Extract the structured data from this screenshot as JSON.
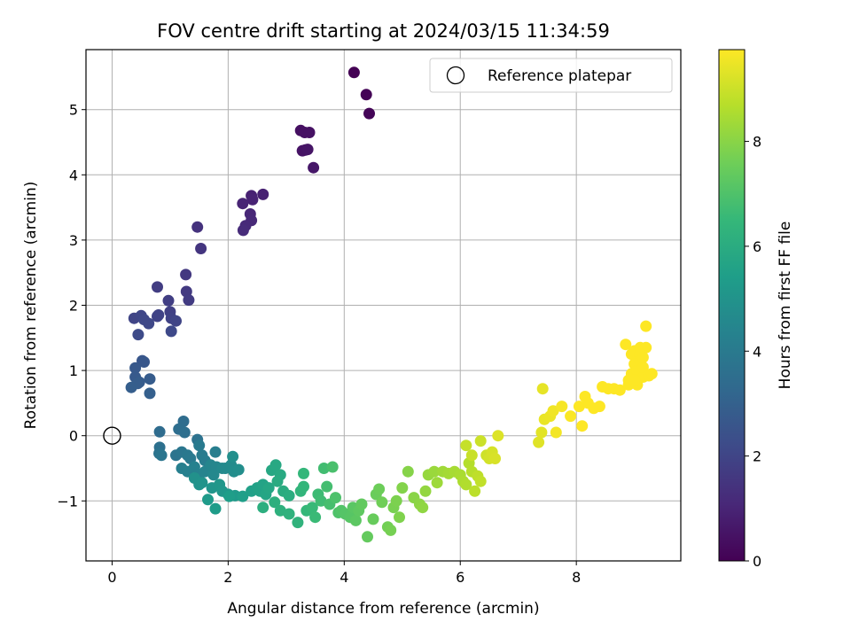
{
  "chart_data": {
    "type": "scatter",
    "title": "FOV centre drift starting at 2024/03/15 11:34:59",
    "xlabel": "Angular distance from reference (arcmin)",
    "ylabel": "Rotation from reference (arcmin)",
    "xlim": [
      -0.45,
      9.8
    ],
    "ylim": [
      -1.92,
      5.92
    ],
    "xticks": [
      0,
      2,
      4,
      6,
      8
    ],
    "yticks": [
      -1,
      0,
      1,
      2,
      3,
      4,
      5
    ],
    "grid": true,
    "colormap": "viridis",
    "colorbar": {
      "label": "Hours from first FF file",
      "range": [
        0,
        9.75
      ],
      "ticks": [
        0,
        2,
        4,
        6,
        8
      ]
    },
    "legend": {
      "placement": "top-right",
      "entries": [
        "Reference platepar"
      ]
    },
    "reference_point": {
      "x": 0,
      "y": 0
    },
    "series": [
      {
        "points": [
          [
            4.17,
            5.57,
            0.0
          ],
          [
            4.38,
            5.23,
            0.05
          ],
          [
            4.43,
            4.94,
            0.1
          ],
          [
            3.25,
            4.68,
            0.4
          ],
          [
            3.32,
            4.65,
            0.45
          ],
          [
            3.4,
            4.65,
            0.45
          ],
          [
            3.28,
            4.37,
            0.5
          ],
          [
            3.33,
            4.38,
            0.5
          ],
          [
            3.37,
            4.39,
            0.55
          ],
          [
            3.47,
            4.11,
            0.6
          ],
          [
            2.6,
            3.7,
            0.9
          ],
          [
            2.4,
            3.68,
            0.9
          ],
          [
            2.42,
            3.62,
            0.95
          ],
          [
            2.25,
            3.56,
            1.0
          ],
          [
            2.38,
            3.4,
            1.05
          ],
          [
            2.4,
            3.3,
            1.1
          ],
          [
            2.3,
            3.22,
            1.15
          ],
          [
            2.26,
            3.15,
            1.2
          ],
          [
            1.47,
            3.2,
            1.4
          ],
          [
            1.53,
            2.87,
            1.5
          ],
          [
            1.27,
            2.47,
            1.6
          ],
          [
            1.28,
            2.21,
            1.65
          ],
          [
            1.32,
            2.08,
            1.7
          ],
          [
            0.78,
            2.28,
            1.75
          ],
          [
            0.97,
            2.07,
            1.8
          ],
          [
            1.0,
            1.9,
            1.85
          ],
          [
            1.02,
            1.8,
            1.9
          ],
          [
            0.78,
            1.83,
            1.95
          ],
          [
            0.8,
            1.85,
            1.95
          ],
          [
            1.1,
            1.76,
            2.0
          ],
          [
            0.38,
            1.8,
            2.0
          ],
          [
            0.5,
            1.84,
            2.05
          ],
          [
            0.55,
            1.78,
            2.1
          ],
          [
            0.63,
            1.72,
            2.1
          ],
          [
            1.02,
            1.6,
            2.15
          ],
          [
            0.45,
            1.55,
            2.2
          ],
          [
            0.52,
            1.15,
            2.6
          ],
          [
            0.55,
            1.13,
            2.65
          ],
          [
            0.4,
            1.04,
            2.7
          ],
          [
            0.4,
            0.9,
            2.75
          ],
          [
            0.65,
            0.87,
            2.8
          ],
          [
            0.47,
            0.82,
            2.8
          ],
          [
            0.44,
            0.8,
            2.85
          ],
          [
            0.33,
            0.74,
            2.9
          ],
          [
            0.65,
            0.65,
            2.95
          ],
          [
            0.82,
            0.06,
            3.4
          ],
          [
            1.23,
            0.22,
            3.45
          ],
          [
            1.15,
            0.1,
            3.5
          ],
          [
            1.25,
            0.05,
            3.55
          ],
          [
            0.82,
            -0.18,
            3.6
          ],
          [
            1.47,
            -0.06,
            3.65
          ],
          [
            0.81,
            -0.27,
            3.7
          ],
          [
            1.1,
            -0.3,
            3.75
          ],
          [
            0.85,
            -0.3,
            3.8
          ],
          [
            1.2,
            -0.25,
            3.85
          ],
          [
            1.3,
            -0.3,
            3.9
          ],
          [
            1.35,
            -0.35,
            3.95
          ],
          [
            1.5,
            -0.15,
            4.0
          ],
          [
            1.55,
            -0.3,
            4.05
          ],
          [
            1.6,
            -0.38,
            4.1
          ],
          [
            1.78,
            -0.25,
            4.15
          ],
          [
            1.2,
            -0.5,
            4.2
          ],
          [
            1.3,
            -0.55,
            4.25
          ],
          [
            1.42,
            -0.48,
            4.3
          ],
          [
            1.5,
            -0.6,
            4.35
          ],
          [
            1.6,
            -0.55,
            4.4
          ],
          [
            1.7,
            -0.45,
            4.45
          ],
          [
            1.8,
            -0.48,
            4.5
          ],
          [
            1.75,
            -0.6,
            4.55
          ],
          [
            1.9,
            -0.5,
            4.6
          ],
          [
            1.95,
            -0.5,
            4.65
          ],
          [
            2.05,
            -0.45,
            4.7
          ],
          [
            2.1,
            -0.55,
            4.75
          ],
          [
            2.18,
            -0.52,
            4.8
          ],
          [
            2.08,
            -0.32,
            4.85
          ],
          [
            1.42,
            -0.65,
            4.9
          ],
          [
            1.5,
            -0.75,
            4.95
          ],
          [
            1.55,
            -0.72,
            5.0
          ],
          [
            1.72,
            -0.8,
            5.05
          ],
          [
            1.85,
            -0.75,
            5.1
          ],
          [
            1.9,
            -0.85,
            5.15
          ],
          [
            2.0,
            -0.9,
            5.2
          ],
          [
            2.12,
            -0.92,
            5.25
          ],
          [
            1.65,
            -0.98,
            5.3
          ],
          [
            1.78,
            -1.12,
            5.35
          ],
          [
            2.02,
            -0.93,
            5.4
          ],
          [
            2.25,
            -0.93,
            5.45
          ],
          [
            2.4,
            -0.85,
            5.5
          ],
          [
            2.5,
            -0.8,
            5.55
          ],
          [
            2.55,
            -0.85,
            5.6
          ],
          [
            2.6,
            -0.75,
            5.65
          ],
          [
            2.65,
            -0.9,
            5.7
          ],
          [
            2.7,
            -0.8,
            5.75
          ],
          [
            2.75,
            -0.53,
            5.8
          ],
          [
            2.82,
            -0.45,
            5.85
          ],
          [
            2.9,
            -0.6,
            5.9
          ],
          [
            2.85,
            -0.7,
            5.95
          ],
          [
            2.95,
            -0.85,
            6.0
          ],
          [
            3.05,
            -0.92,
            6.05
          ],
          [
            2.6,
            -1.1,
            6.1
          ],
          [
            2.8,
            -1.02,
            6.15
          ],
          [
            2.9,
            -1.15,
            6.2
          ],
          [
            3.05,
            -1.2,
            6.25
          ],
          [
            3.2,
            -1.33,
            6.3
          ],
          [
            3.25,
            -0.85,
            6.35
          ],
          [
            3.3,
            -0.78,
            6.4
          ],
          [
            3.3,
            -0.58,
            6.45
          ],
          [
            3.35,
            -1.15,
            6.5
          ],
          [
            3.45,
            -1.1,
            6.55
          ],
          [
            3.5,
            -1.25,
            6.6
          ],
          [
            3.55,
            -0.9,
            6.65
          ],
          [
            3.6,
            -1.0,
            6.7
          ],
          [
            3.65,
            -0.5,
            6.75
          ],
          [
            3.7,
            -0.78,
            6.8
          ],
          [
            3.75,
            -1.05,
            6.85
          ],
          [
            3.8,
            -0.48,
            6.9
          ],
          [
            3.85,
            -0.95,
            6.95
          ],
          [
            3.9,
            -1.18,
            7.0
          ],
          [
            3.95,
            -1.15,
            7.05
          ],
          [
            4.02,
            -1.2,
            7.1
          ],
          [
            4.1,
            -1.25,
            7.15
          ],
          [
            4.15,
            -1.1,
            7.2
          ],
          [
            4.2,
            -1.3,
            7.25
          ],
          [
            4.25,
            -1.15,
            7.3
          ],
          [
            4.3,
            -1.05,
            7.35
          ],
          [
            4.4,
            -1.55,
            7.4
          ],
          [
            4.5,
            -1.28,
            7.45
          ],
          [
            4.55,
            -0.9,
            7.5
          ],
          [
            4.6,
            -0.82,
            7.55
          ],
          [
            4.65,
            -1.02,
            7.6
          ],
          [
            4.75,
            -1.4,
            7.65
          ],
          [
            4.8,
            -1.45,
            7.7
          ],
          [
            4.85,
            -1.1,
            7.75
          ],
          [
            4.9,
            -1.0,
            7.8
          ],
          [
            4.95,
            -1.25,
            7.85
          ],
          [
            5.0,
            -0.8,
            7.9
          ],
          [
            5.1,
            -0.55,
            7.95
          ],
          [
            5.2,
            -0.95,
            8.0
          ],
          [
            5.3,
            -1.05,
            8.05
          ],
          [
            5.35,
            -1.1,
            8.1
          ],
          [
            5.4,
            -0.85,
            8.15
          ],
          [
            5.45,
            -0.6,
            8.2
          ],
          [
            5.55,
            -0.55,
            8.25
          ],
          [
            5.6,
            -0.72,
            8.3
          ],
          [
            5.7,
            -0.55,
            8.35
          ],
          [
            5.8,
            -0.58,
            8.4
          ],
          [
            5.9,
            -0.55,
            8.45
          ],
          [
            6.0,
            -0.6,
            8.5
          ],
          [
            6.05,
            -0.7,
            8.55
          ],
          [
            6.1,
            -0.75,
            8.6
          ],
          [
            6.15,
            -0.42,
            8.65
          ],
          [
            6.2,
            -0.55,
            8.7
          ],
          [
            6.25,
            -0.85,
            8.75
          ],
          [
            6.3,
            -0.62,
            8.8
          ],
          [
            6.35,
            -0.7,
            8.85
          ],
          [
            6.1,
            -0.15,
            8.9
          ],
          [
            6.2,
            -0.3,
            8.95
          ],
          [
            6.35,
            -0.08,
            9.0
          ],
          [
            6.45,
            -0.3,
            9.05
          ],
          [
            6.5,
            -0.35,
            9.1
          ],
          [
            6.55,
            -0.25,
            9.15
          ],
          [
            6.6,
            -0.35,
            9.2
          ],
          [
            6.65,
            0.0,
            9.25
          ],
          [
            7.35,
            -0.1,
            9.3
          ],
          [
            7.4,
            0.05,
            9.35
          ],
          [
            7.42,
            0.72,
            9.4
          ],
          [
            7.45,
            0.25,
            9.45
          ],
          [
            7.55,
            0.3,
            9.5
          ],
          [
            7.6,
            0.38,
            9.55
          ],
          [
            7.65,
            0.05,
            9.6
          ],
          [
            7.75,
            0.45,
            9.65
          ],
          [
            7.9,
            0.3,
            9.7
          ],
          [
            8.05,
            0.45,
            9.75
          ],
          [
            8.1,
            0.15,
            9.75
          ],
          [
            8.15,
            0.6,
            9.75
          ],
          [
            8.2,
            0.5,
            9.75
          ],
          [
            8.3,
            0.42,
            9.75
          ],
          [
            8.4,
            0.45,
            9.75
          ],
          [
            8.45,
            0.75,
            9.75
          ],
          [
            8.55,
            0.72,
            9.75
          ],
          [
            8.65,
            0.72,
            9.75
          ],
          [
            8.75,
            0.7,
            9.75
          ],
          [
            8.85,
            1.4,
            9.75
          ],
          [
            8.9,
            0.85,
            9.75
          ],
          [
            8.95,
            0.95,
            9.75
          ],
          [
            8.95,
            1.25,
            9.75
          ],
          [
            9.0,
            1.1,
            9.75
          ],
          [
            9.0,
            1.3,
            9.75
          ],
          [
            9.05,
            1.0,
            9.75
          ],
          [
            9.05,
            0.78,
            9.75
          ],
          [
            9.1,
            1.35,
            9.75
          ],
          [
            9.1,
            1.15,
            9.75
          ],
          [
            9.15,
            0.9,
            9.75
          ],
          [
            9.15,
            1.05,
            9.75
          ],
          [
            9.2,
            1.35,
            9.75
          ],
          [
            9.2,
            1.68,
            9.75
          ],
          [
            9.25,
            0.92,
            9.75
          ],
          [
            9.3,
            0.95,
            9.75
          ],
          [
            8.9,
            0.78,
            9.75
          ],
          [
            9.0,
            0.85,
            9.75
          ],
          [
            9.1,
            1.25,
            9.75
          ],
          [
            9.15,
            1.2,
            9.75
          ]
        ]
      }
    ]
  }
}
